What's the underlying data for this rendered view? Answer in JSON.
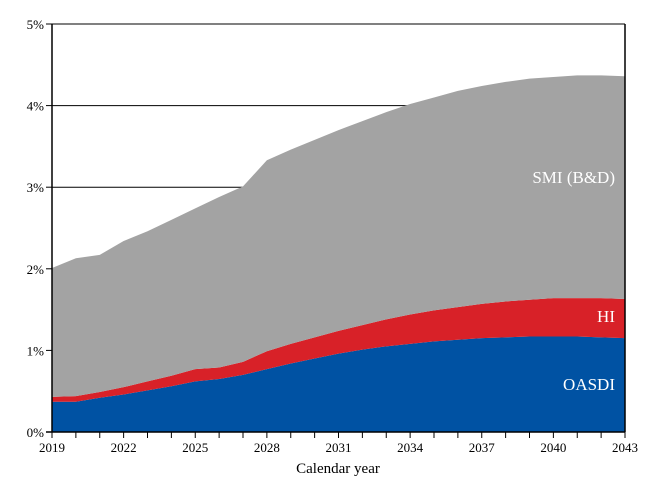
{
  "chart_data": {
    "type": "area",
    "stacked": true,
    "title": "",
    "xlabel": "Calendar year",
    "ylabel": "",
    "x": [
      2019,
      2020,
      2021,
      2022,
      2023,
      2024,
      2025,
      2026,
      2027,
      2028,
      2029,
      2030,
      2031,
      2032,
      2033,
      2034,
      2035,
      2036,
      2037,
      2038,
      2039,
      2040,
      2041,
      2042,
      2043
    ],
    "xlim": [
      2019,
      2043
    ],
    "ylim": [
      0,
      5
    ],
    "x_ticks": [
      "2019",
      "2022",
      "2025",
      "2028",
      "2031",
      "2034",
      "2037",
      "2040",
      "2043"
    ],
    "y_ticks": [
      "0%",
      "1%",
      "2%",
      "3%",
      "4%",
      "5%"
    ],
    "grid": "horizontal at 3% and 4%",
    "series": [
      {
        "name": "OASDI",
        "color": "#0052a3",
        "values": [
          0.37,
          0.37,
          0.42,
          0.46,
          0.51,
          0.56,
          0.62,
          0.65,
          0.7,
          0.77,
          0.84,
          0.9,
          0.96,
          1.01,
          1.05,
          1.08,
          1.11,
          1.13,
          1.15,
          1.16,
          1.17,
          1.17,
          1.17,
          1.16,
          1.15
        ]
      },
      {
        "name": "HI",
        "color": "#d82128",
        "values": [
          0.06,
          0.07,
          0.07,
          0.09,
          0.11,
          0.13,
          0.15,
          0.14,
          0.16,
          0.22,
          0.24,
          0.26,
          0.28,
          0.3,
          0.33,
          0.36,
          0.38,
          0.4,
          0.42,
          0.44,
          0.45,
          0.47,
          0.47,
          0.48,
          0.48
        ]
      },
      {
        "name": "SMI (B&D)",
        "color": "#a3a3a3",
        "values": [
          1.58,
          1.69,
          1.68,
          1.79,
          1.84,
          1.91,
          1.97,
          2.09,
          2.15,
          2.34,
          2.38,
          2.42,
          2.46,
          2.5,
          2.54,
          2.58,
          2.61,
          2.65,
          2.67,
          2.69,
          2.71,
          2.71,
          2.73,
          2.73,
          2.73
        ]
      }
    ]
  }
}
